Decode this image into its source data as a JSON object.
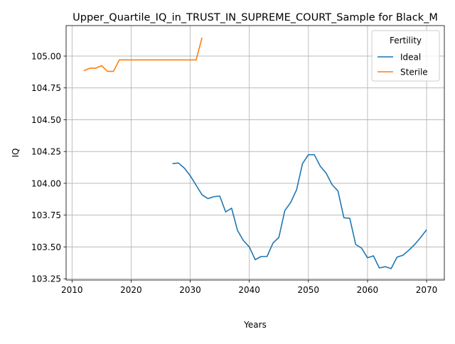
{
  "chart_data": {
    "type": "line",
    "title": "Upper_Quartile_IQ_in_TRUST_IN_SUPREME_COURT_Sample for Black_M",
    "xlabel": "Years",
    "ylabel": "IQ",
    "xlim": [
      2009,
      2073
    ],
    "ylim": [
      103.24,
      105.24
    ],
    "x_ticks": [
      2010,
      2020,
      2030,
      2040,
      2050,
      2060,
      2070
    ],
    "y_ticks": [
      103.25,
      103.5,
      103.75,
      104.0,
      104.25,
      104.5,
      104.75,
      105.0
    ],
    "x_tick_labels": [
      "2010",
      "2020",
      "2030",
      "2040",
      "2050",
      "2060",
      "2070"
    ],
    "y_tick_labels": [
      "103.25",
      "103.50",
      "103.75",
      "104.00",
      "104.25",
      "104.50",
      "104.75",
      "105.00"
    ],
    "grid": true,
    "legend": {
      "title": "Fertility",
      "placement": "top-right"
    },
    "series": [
      {
        "name": "Ideal",
        "color": "#1f77b4",
        "x": [
          2027,
          2028,
          2029,
          2030,
          2031,
          2032,
          2033,
          2034,
          2035,
          2036,
          2037,
          2038,
          2039,
          2040,
          2041,
          2042,
          2043,
          2044,
          2045,
          2046,
          2047,
          2048,
          2049,
          2050,
          2051,
          2052,
          2053,
          2054,
          2055,
          2056,
          2057,
          2058,
          2059,
          2060,
          2061,
          2062,
          2063,
          2064,
          2065,
          2066,
          2067,
          2068,
          2069,
          2070
        ],
        "y": [
          104.155,
          104.16,
          104.12,
          104.06,
          103.985,
          103.91,
          103.88,
          103.895,
          103.9,
          103.775,
          103.805,
          103.63,
          103.55,
          103.5,
          103.4,
          103.425,
          103.425,
          103.53,
          103.575,
          103.785,
          103.85,
          103.95,
          104.155,
          104.225,
          104.225,
          104.135,
          104.08,
          103.99,
          103.94,
          103.73,
          103.725,
          103.52,
          103.49,
          103.415,
          103.43,
          103.335,
          103.345,
          103.33,
          103.42,
          103.435,
          103.475,
          103.52,
          103.575,
          103.635
        ]
      },
      {
        "name": "Sterile",
        "color": "#ff7f0e",
        "x": [
          2012,
          2013,
          2014,
          2015,
          2016,
          2017,
          2018,
          2019,
          2020,
          2021,
          2022,
          2023,
          2024,
          2025,
          2026,
          2027,
          2028,
          2029,
          2030,
          2031,
          2032
        ],
        "y": [
          104.885,
          104.905,
          104.905,
          104.925,
          104.88,
          104.88,
          104.97,
          104.97,
          104.97,
          104.97,
          104.97,
          104.97,
          104.97,
          104.97,
          104.97,
          104.97,
          104.97,
          104.97,
          104.97,
          104.97,
          105.145
        ]
      }
    ]
  }
}
